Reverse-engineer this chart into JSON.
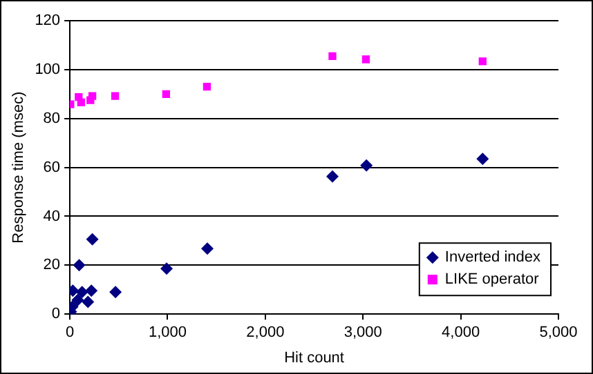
{
  "chart_data": {
    "type": "scatter",
    "xlabel": "Hit count",
    "ylabel": "Response time (msec)",
    "xlim": [
      0,
      5000
    ],
    "xticks": [
      0,
      {
        "value": 1000,
        "label": "1,000"
      },
      {
        "value": 2000,
        "label": "2,000"
      },
      {
        "value": 3000,
        "label": "3,000"
      },
      {
        "value": 4000,
        "label": "4,000"
      },
      {
        "value": 5000,
        "label": "5,000"
      }
    ],
    "ylim": [
      0,
      120
    ],
    "yticks": [
      0,
      20,
      40,
      60,
      80,
      100,
      120
    ],
    "grid": "y",
    "legend": "bottom right",
    "series": [
      {
        "name": "Inverted index",
        "color": "#000080",
        "marker": "diamond",
        "x": [
          10,
          25,
          30,
          80,
          95,
          125,
          185,
          220,
          230,
          467,
          990,
          1407,
          2687,
          3035,
          4224
        ],
        "values": [
          1,
          3,
          9.6,
          5.8,
          20,
          9,
          5,
          9.6,
          30.6,
          9,
          18.6,
          26.8,
          56.3,
          60.8,
          63.5
        ]
      },
      {
        "name": "LIKE operator",
        "color": "#ff00ff",
        "marker": "square",
        "x": [
          5,
          30,
          65,
          90,
          115,
          210,
          230,
          463,
          985,
          1403,
          2687,
          3030,
          4224
        ],
        "values": [
          85.8,
          null,
          null,
          88.8,
          86.6,
          87.5,
          89.2,
          89.2,
          90,
          93,
          105.5,
          104.2,
          103.4
        ]
      }
    ]
  }
}
